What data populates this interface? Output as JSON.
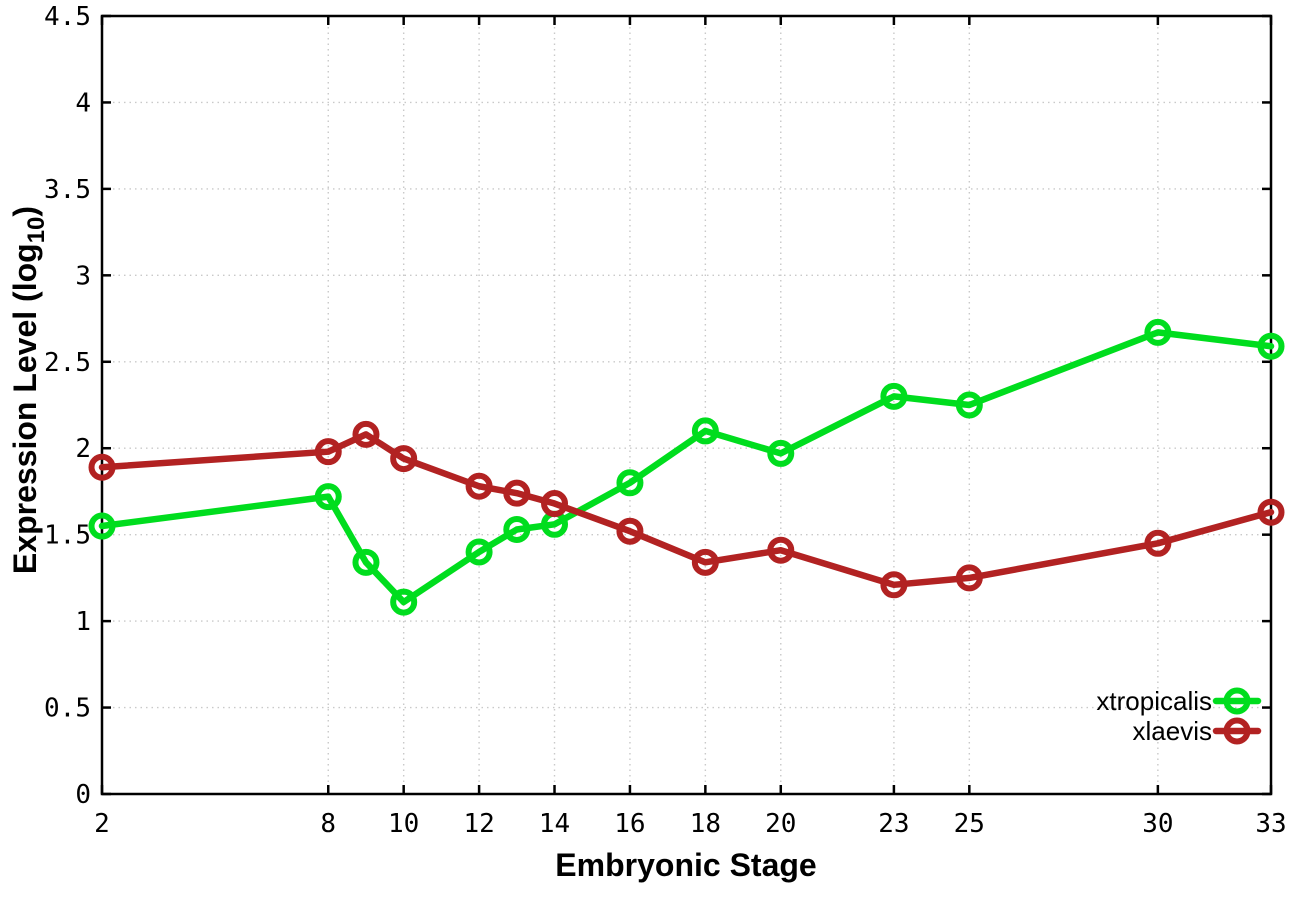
{
  "chart_data": {
    "type": "line",
    "title": "",
    "xlabel": "Embryonic Stage",
    "ylabel": "Expression Level (log10)",
    "ylabel_parts": {
      "main": "Expression Level (log",
      "sub": "10",
      "end": ")"
    },
    "xlim": [
      2,
      33
    ],
    "ylim": [
      0,
      4.5
    ],
    "x_ticks": [
      2,
      8,
      10,
      12,
      14,
      16,
      18,
      20,
      23,
      25,
      30,
      33
    ],
    "y_tick_step": 0.5,
    "grid": "dotted",
    "legend_position": "inside-bottom-right",
    "x": [
      2,
      8,
      9,
      10,
      12,
      13,
      14,
      16,
      18,
      20,
      23,
      25,
      30,
      33
    ],
    "series": [
      {
        "name": "xtropicalis",
        "color": "#00dd1e",
        "marker": "open-circle",
        "values": [
          1.55,
          1.72,
          1.34,
          1.11,
          1.4,
          1.53,
          1.56,
          1.8,
          2.1,
          1.97,
          2.3,
          2.25,
          2.67,
          2.59
        ]
      },
      {
        "name": "xlaevis",
        "color": "#b22222",
        "marker": "open-circle",
        "values": [
          1.89,
          1.98,
          2.08,
          1.94,
          1.78,
          1.74,
          1.68,
          1.52,
          1.34,
          1.41,
          1.21,
          1.25,
          1.45,
          1.63
        ]
      }
    ]
  },
  "colors": {
    "background": "#ffffff",
    "grid": "#c9c9c9",
    "axis": "#000000",
    "xtropicalis": "#00dd1e",
    "xlaevis": "#b22222"
  }
}
